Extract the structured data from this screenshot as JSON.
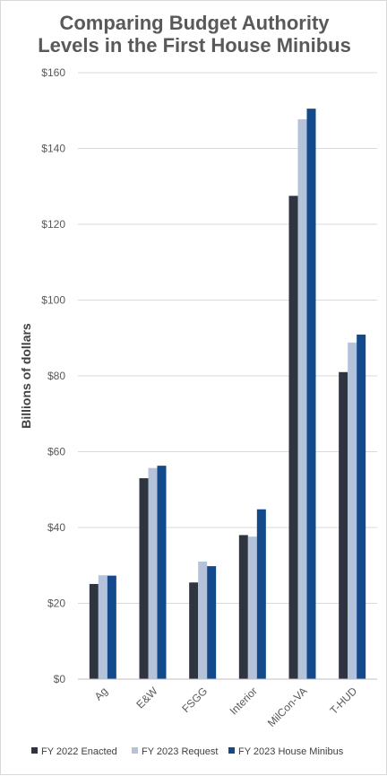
{
  "chart_data": {
    "type": "bar",
    "title_lines": [
      "Comparing Budget Authority",
      "Levels in the First House Minibus"
    ],
    "ylabel": "Billions of dollars",
    "xlabel": "",
    "ylim": [
      0,
      160
    ],
    "yticks": [
      0,
      20,
      40,
      60,
      80,
      100,
      120,
      140,
      160
    ],
    "ytick_labels": [
      "$0",
      "$20",
      "$40",
      "$60",
      "$80",
      "$100",
      "$120",
      "$140",
      "$160"
    ],
    "grid": "horizontal",
    "legend_position": "bottom",
    "categories": [
      "Ag",
      "E&W",
      "FSGG",
      "Interior",
      "MilCon-VA",
      "T-HUD"
    ],
    "series": [
      {
        "name": "FY 2022 Enacted",
        "color": "#2f3540",
        "values": [
          25.1,
          53.0,
          25.5,
          38.0,
          127.5,
          81.0
        ]
      },
      {
        "name": "FY 2023 Request",
        "color": "#b4c3da",
        "values": [
          27.4,
          55.7,
          31.0,
          37.6,
          147.7,
          88.8
        ]
      },
      {
        "name": "FY 2023 House Minibus",
        "color": "#124a8c",
        "values": [
          27.3,
          56.3,
          29.8,
          44.8,
          150.5,
          90.9
        ]
      }
    ]
  }
}
